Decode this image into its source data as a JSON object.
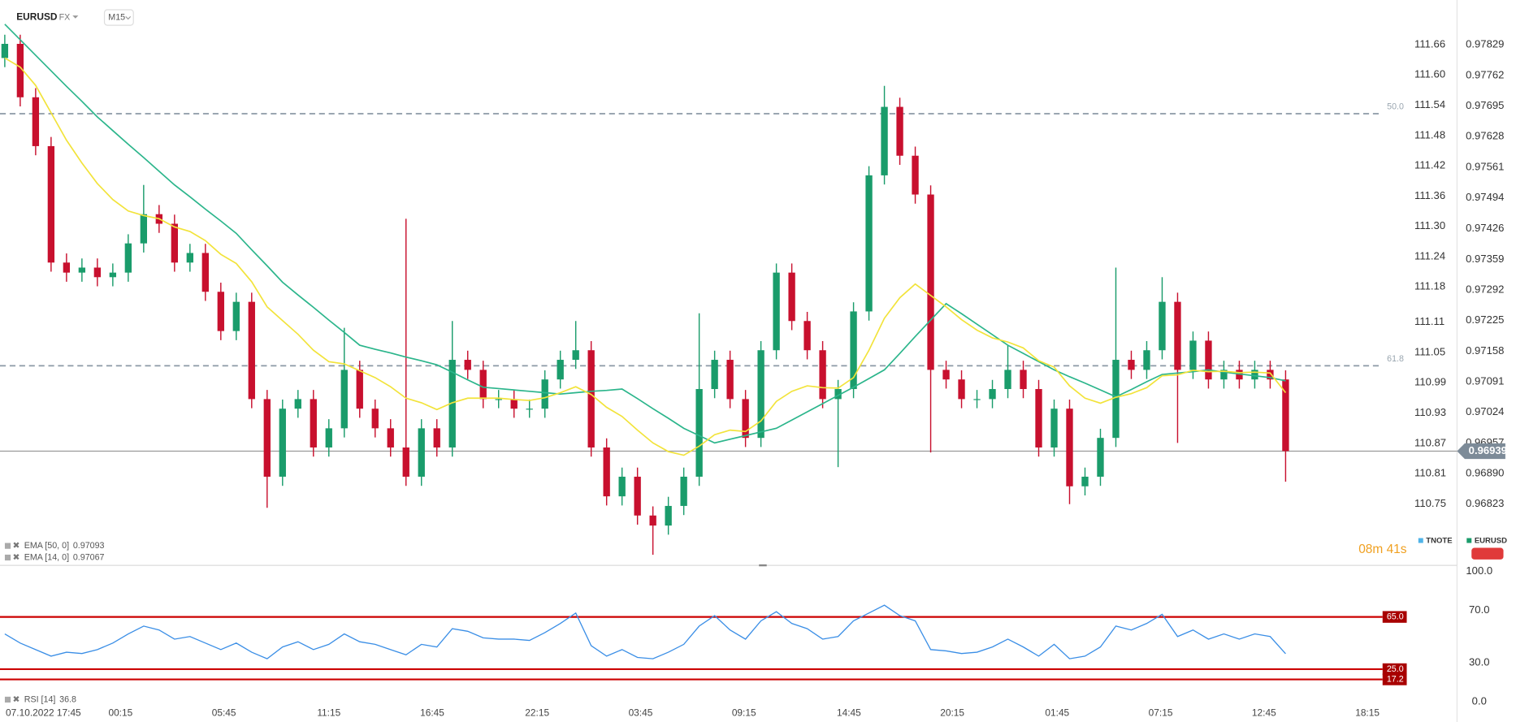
{
  "chart_data": [
    {
      "type": "candlestick",
      "symbol": "EURUSD",
      "market": "FX",
      "timeframe": "M15",
      "up_color": "#1a9c6b",
      "down_color": "#c8102e",
      "xlim": [
        -0.31,
        90.85
      ],
      "ylim": [
        0.96691,
        0.9791
      ],
      "yticks": [
        0.97829,
        0.97762,
        0.97695,
        0.97628,
        0.97561,
        0.97494,
        0.97426,
        0.97359,
        0.97292,
        0.97225,
        0.97158,
        0.97091,
        0.97024,
        0.96957,
        {
          "value": 0.9689,
          "label": "0.96890"
        },
        0.96823
      ],
      "y2lim": [
        110.63,
        111.733
      ],
      "y2ticks": [
        111.66,
        {
          "value": 111.6,
          "label": "111.60"
        },
        111.54,
        111.48,
        111.42,
        111.36,
        {
          "value": 111.3,
          "label": "111.30"
        },
        111.24,
        111.18,
        111.11,
        111.05,
        110.99,
        110.93,
        110.87,
        110.81,
        110.75
      ],
      "candles": {
        "open": [
          0.978,
          0.97831,
          0.97714,
          0.97607,
          0.97352,
          0.9733,
          0.97341,
          0.9732,
          0.9733,
          0.97394,
          0.97458,
          0.97437,
          0.97352,
          0.97373,
          0.97288,
          0.97202,
          0.97266,
          0.97053,
          0.96883,
          0.97032,
          0.97053,
          0.96947,
          0.96989,
          0.97117,
          0.97032,
          0.96989,
          0.96947,
          0.96883,
          0.96989,
          0.96947,
          0.97139,
          0.97117,
          0.97053,
          0.97053,
          0.97032,
          0.97032,
          0.97096,
          0.97139,
          0.9716,
          0.96947,
          0.9684,
          0.96883,
          0.96798,
          0.96776,
          0.96819,
          0.96883,
          0.97075,
          0.97139,
          0.97053,
          0.96968,
          0.9716,
          0.9733,
          0.97224,
          0.9716,
          0.97053,
          0.97075,
          0.97245,
          0.97543,
          0.97693,
          0.97586,
          0.97501,
          0.97117,
          0.97096,
          0.97053,
          0.97053,
          0.97075,
          0.97117,
          0.97075,
          0.96947,
          0.97032,
          0.96862,
          0.96883,
          0.96968,
          0.97139,
          0.97117,
          0.9716,
          0.97266,
          0.97117,
          0.97181,
          0.97096,
          0.97117,
          0.97096,
          0.97117,
          0.97096
        ],
        "high": [
          0.97851,
          0.97851,
          0.97734,
          0.97627,
          0.97372,
          0.97361,
          0.97361,
          0.9735,
          0.97414,
          0.97522,
          0.97478,
          0.97457,
          0.97393,
          0.97393,
          0.97308,
          0.97286,
          0.97286,
          0.97073,
          0.97052,
          0.97073,
          0.97073,
          0.97009,
          0.97209,
          0.97137,
          0.97052,
          0.97009,
          0.97448,
          0.97009,
          0.97009,
          0.97224,
          0.97159,
          0.97137,
          0.97073,
          0.97073,
          0.97052,
          0.97116,
          0.97159,
          0.97224,
          0.9718,
          0.96967,
          0.96903,
          0.96903,
          0.96818,
          0.96839,
          0.96903,
          0.97241,
          0.97159,
          0.97159,
          0.97073,
          0.9718,
          0.9735,
          0.9735,
          0.97244,
          0.9718,
          0.97095,
          0.97265,
          0.97563,
          0.97739,
          0.97713,
          0.97606,
          0.97521,
          0.97137,
          0.97116,
          0.97073,
          0.97095,
          0.97171,
          0.97137,
          0.97095,
          0.97052,
          0.97052,
          0.96903,
          0.96988,
          0.97341,
          0.97159,
          0.9718,
          0.9732,
          0.97286,
          0.97201,
          0.97201,
          0.97137,
          0.97137,
          0.97137,
          0.97137,
          0.97116
        ],
        "low": [
          0.9778,
          0.97694,
          0.97587,
          0.97332,
          0.9731,
          0.9731,
          0.973,
          0.973,
          0.9731,
          0.97374,
          0.97417,
          0.97332,
          0.97332,
          0.97268,
          0.97182,
          0.97182,
          0.97033,
          0.96815,
          0.96863,
          0.97012,
          0.96927,
          0.96927,
          0.96969,
          0.97012,
          0.96969,
          0.96927,
          0.96863,
          0.96863,
          0.96927,
          0.96927,
          0.97097,
          0.97033,
          0.97033,
          0.97012,
          0.97012,
          0.97012,
          0.97076,
          0.97119,
          0.96927,
          0.9682,
          0.9682,
          0.96778,
          0.96712,
          0.96756,
          0.96799,
          0.96863,
          0.97055,
          0.97033,
          0.96948,
          0.96948,
          0.9714,
          0.97204,
          0.9714,
          0.97033,
          0.96904,
          0.97055,
          0.97225,
          0.97523,
          0.97566,
          0.97481,
          0.96936,
          0.97076,
          0.97033,
          0.97033,
          0.97033,
          0.97055,
          0.97055,
          0.96927,
          0.96927,
          0.96823,
          0.96842,
          0.96863,
          0.96948,
          0.97097,
          0.97097,
          0.9714,
          0.96957,
          0.97097,
          0.97076,
          0.97076,
          0.97076,
          0.97076,
          0.97076,
          0.96872
        ],
        "close": [
          0.97831,
          0.97714,
          0.97607,
          0.97352,
          0.9733,
          0.97341,
          0.9732,
          0.9733,
          0.97394,
          0.97458,
          0.97437,
          0.97352,
          0.97373,
          0.97288,
          0.97202,
          0.97266,
          0.97053,
          0.96883,
          0.97032,
          0.97053,
          0.96947,
          0.96989,
          0.97117,
          0.97032,
          0.96989,
          0.96947,
          0.96883,
          0.96989,
          0.96947,
          0.97139,
          0.97117,
          0.97053,
          0.97053,
          0.97032,
          0.97032,
          0.97096,
          0.97139,
          0.9716,
          0.96947,
          0.9684,
          0.96883,
          0.96798,
          0.96776,
          0.96819,
          0.96883,
          0.97075,
          0.97139,
          0.97053,
          0.96968,
          0.9716,
          0.9733,
          0.97224,
          0.9716,
          0.97053,
          0.97075,
          0.97245,
          0.97543,
          0.97693,
          0.97586,
          0.97501,
          0.97117,
          0.97096,
          0.97053,
          0.97053,
          0.97075,
          0.97117,
          0.97075,
          0.96947,
          0.97032,
          0.96862,
          0.96883,
          0.96968,
          0.97139,
          0.97117,
          0.9716,
          0.97266,
          0.97117,
          0.97181,
          0.97096,
          0.97117,
          0.97096,
          0.97117,
          0.97096,
          0.96939
        ]
      },
      "lines": [
        {
          "name": "EMA [50, 0]",
          "color": "#2bb58b",
          "last": 0.97093,
          "values": [
            0.97874,
            0.9784,
            0.97806,
            0.97772,
            0.97738,
            0.97705,
            0.97671,
            0.97641,
            0.97611,
            0.97582,
            0.97552,
            0.97522,
            0.97496,
            0.97469,
            0.97443,
            0.97416,
            0.9738,
            0.97345,
            0.97309,
            0.97281,
            0.97254,
            0.97226,
            0.97199,
            0.97171,
            0.97162,
            0.97154,
            0.97145,
            0.97137,
            0.97128,
            0.97112,
            0.97095,
            0.97079,
            0.97076,
            0.97073,
            0.9707,
            0.97067,
            0.97064,
            0.97067,
            0.9707,
            0.97072,
            0.97075,
            0.97054,
            0.97032,
            0.97011,
            0.96989,
            0.96973,
            0.96957,
            0.96965,
            0.96973,
            0.96981,
            0.96989,
            0.97007,
            0.97025,
            0.97043,
            0.97061,
            0.97079,
            0.97098,
            0.97117,
            0.97153,
            0.9719,
            0.97226,
            0.97262,
            0.9724,
            0.97217,
            0.97194,
            0.97171,
            0.97153,
            0.97135,
            0.97117,
            0.97102,
            0.97088,
            0.97073,
            0.97058,
            0.97074,
            0.97091,
            0.97107,
            0.9711,
            0.97113,
            0.97117,
            0.97112,
            0.97108,
            0.97104,
            0.971,
            0.97093
          ]
        },
        {
          "name": "EMA [14, 0]",
          "color": "#f2e33a",
          "last": 0.97067,
          "values": [
            0.978,
            0.9778,
            0.9774,
            0.9768,
            0.9762,
            0.9757,
            0.97525,
            0.9749,
            0.97465,
            0.97455,
            0.97448,
            0.9743,
            0.9742,
            0.974,
            0.9737,
            0.9735,
            0.9731,
            0.97255,
            0.97225,
            0.97195,
            0.9716,
            0.97135,
            0.9713,
            0.97115,
            0.971,
            0.9708,
            0.97055,
            0.97045,
            0.9703,
            0.97045,
            0.97055,
            0.97055,
            0.97055,
            0.97052,
            0.9705,
            0.97056,
            0.97067,
            0.9708,
            0.97063,
            0.97035,
            0.97015,
            0.96985,
            0.96957,
            0.96938,
            0.9693,
            0.9695,
            0.96975,
            0.96985,
            0.96982,
            0.97005,
            0.97048,
            0.9707,
            0.97082,
            0.97078,
            0.97077,
            0.971,
            0.9716,
            0.9723,
            0.97275,
            0.97305,
            0.9728,
            0.97255,
            0.97227,
            0.97204,
            0.97187,
            0.97178,
            0.97165,
            0.97137,
            0.97123,
            0.97082,
            0.97055,
            0.97044,
            0.97057,
            0.97065,
            0.97078,
            0.97104,
            0.97106,
            0.97116,
            0.97113,
            0.97114,
            0.97111,
            0.97112,
            0.9711,
            0.97067
          ]
        }
      ],
      "levels": [
        {
          "value": 0.97678,
          "label": "50.0"
        },
        {
          "value": 0.97126,
          "label": "61.8"
        }
      ],
      "last_price": 0.96939,
      "countdown": "08m 41s",
      "legend": [
        {
          "name": "TNOTE",
          "color": "#4fb3e8"
        },
        {
          "name": "EURUSD",
          "color": "#1a9c6b"
        }
      ]
    },
    {
      "type": "line",
      "name": "RSI [14]",
      "last": 36.8,
      "color": "#3a8ee6",
      "xlim": [
        -0.31,
        90.85
      ],
      "xticks": [
        {
          "value": 2.5,
          "label": "07.10.2022  17:45"
        },
        {
          "value": 7.5,
          "label": "00:15"
        },
        {
          "value": 14.2,
          "label": "05:45"
        },
        {
          "value": 21,
          "label": "11:15"
        },
        {
          "value": 27.7,
          "label": "16:45"
        },
        {
          "value": 34.5,
          "label": "22:15"
        },
        {
          "value": 41.2,
          "label": "03:45"
        },
        {
          "value": 47.9,
          "label": "09:15"
        },
        {
          "value": 54.7,
          "label": "14:45"
        },
        {
          "value": 61.4,
          "label": "20:15"
        },
        {
          "value": 68.2,
          "label": "01:45"
        },
        {
          "value": 74.9,
          "label": "07:15"
        },
        {
          "value": 81.6,
          "label": "12:45"
        },
        {
          "value": 88.3,
          "label": "18:15"
        }
      ],
      "ylim": [
        -5,
        103
      ],
      "yticks": [
        {
          "value": 100,
          "label": "100.0"
        },
        {
          "value": 70,
          "label": "70.0"
        },
        {
          "value": 30,
          "label": "30.0"
        },
        {
          "value": 0,
          "label": "0.0"
        }
      ],
      "levels": [
        {
          "value": 65,
          "label": "65.0"
        },
        {
          "value": 25,
          "label": "25.0"
        },
        17.2
      ],
      "values": [
        52,
        45,
        40,
        35,
        38,
        37,
        40,
        45,
        52,
        58,
        55,
        48,
        50,
        45,
        40,
        45,
        38,
        33,
        42,
        46,
        40,
        44,
        52,
        46,
        44,
        40,
        36,
        44,
        42,
        56,
        54,
        49,
        48,
        48,
        47,
        53,
        60,
        68,
        43,
        35,
        40,
        34,
        33,
        38,
        44,
        58,
        66,
        55,
        48,
        62,
        69,
        60,
        56,
        48,
        50,
        62,
        68,
        74,
        66,
        62,
        40,
        39,
        37,
        38,
        42,
        48,
        42,
        35,
        44,
        33,
        35,
        42,
        58,
        55,
        60,
        67,
        50,
        55,
        48,
        52,
        48,
        52,
        50,
        36.8
      ]
    }
  ]
}
